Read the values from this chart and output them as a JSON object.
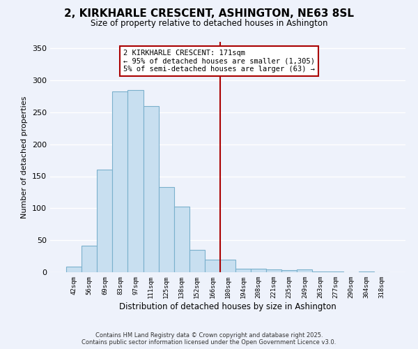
{
  "title": "2, KIRKHARLE CRESCENT, ASHINGTON, NE63 8SL",
  "subtitle": "Size of property relative to detached houses in Ashington",
  "xlabel": "Distribution of detached houses by size in Ashington",
  "ylabel": "Number of detached properties",
  "bar_labels": [
    "42sqm",
    "56sqm",
    "69sqm",
    "83sqm",
    "97sqm",
    "111sqm",
    "125sqm",
    "138sqm",
    "152sqm",
    "166sqm",
    "180sqm",
    "194sqm",
    "208sqm",
    "221sqm",
    "235sqm",
    "249sqm",
    "263sqm",
    "277sqm",
    "290sqm",
    "304sqm",
    "318sqm"
  ],
  "bar_values": [
    9,
    42,
    160,
    283,
    285,
    260,
    133,
    103,
    35,
    20,
    20,
    6,
    5,
    4,
    3,
    4,
    1,
    1,
    0,
    1,
    0
  ],
  "bar_color": "#c8dff0",
  "bar_edge_color": "#7ab0cc",
  "bg_color": "#eef2fb",
  "grid_color": "#ffffff",
  "vline_color": "#aa0000",
  "vline_pos": 9.5,
  "annotation_line1": "2 KIRKHARLE CRESCENT: 171sqm",
  "annotation_line2": "← 95% of detached houses are smaller (1,305)",
  "annotation_line3": "5% of semi-detached houses are larger (63) →",
  "ylim": [
    0,
    360
  ],
  "yticks": [
    0,
    50,
    100,
    150,
    200,
    250,
    300,
    350
  ],
  "footer1": "Contains HM Land Registry data © Crown copyright and database right 2025.",
  "footer2": "Contains public sector information licensed under the Open Government Licence v3.0."
}
